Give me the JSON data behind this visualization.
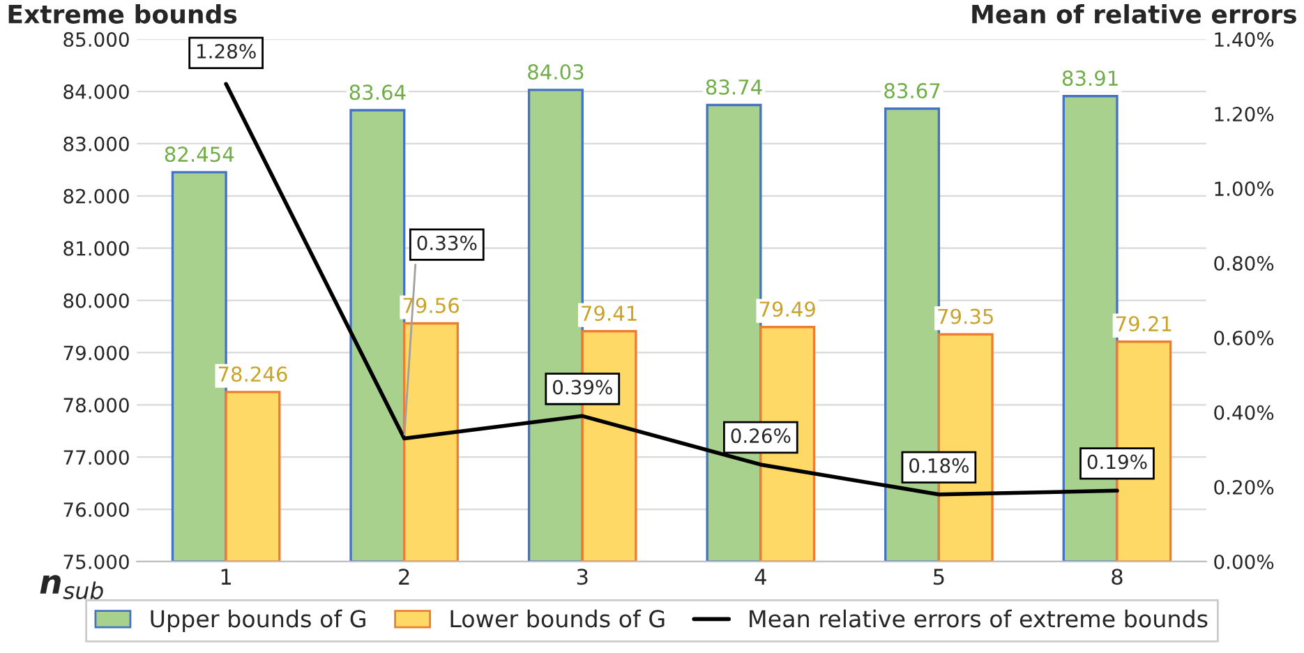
{
  "chart_data": {
    "type": "bar",
    "ylabel": "Extreme bounds",
    "y2label": "Mean of relative errors",
    "xlabel": "n$_{sub}$",
    "categories": [
      "1",
      "2",
      "3",
      "4",
      "5",
      "8"
    ],
    "series": [
      {
        "name": "Upper bounds of G",
        "color": "#a9d18e",
        "values": [
          82.454,
          83.64,
          84.03,
          83.74,
          83.67,
          83.91
        ]
      },
      {
        "name": "Lower bounds of G",
        "color": "#ffd966",
        "values": [
          78.246,
          79.56,
          79.41,
          79.49,
          79.35,
          79.21
        ]
      },
      {
        "name": "Mean relative errors of extreme bounds",
        "type": "line",
        "axis": "y2",
        "color": "#000000",
        "values": [
          1.28,
          0.33,
          0.39,
          0.26,
          0.18,
          0.19
        ],
        "value_labels": [
          "1.28%",
          "0.33%",
          "0.39%",
          "0.26%",
          "0.18%",
          "0.19%"
        ]
      }
    ],
    "data_labels": true,
    "ylim": [
      75,
      85
    ],
    "yticks": [
      {
        "value": 75,
        "label": "75.000"
      },
      {
        "value": 76,
        "label": "76.000"
      },
      {
        "value": 77,
        "label": "77.000"
      },
      {
        "value": 78,
        "label": "78.000"
      },
      {
        "value": 79,
        "label": "79.000"
      },
      {
        "value": 80,
        "label": "80.000"
      },
      {
        "value": 81,
        "label": "81.000"
      },
      {
        "value": 82,
        "label": "82.000"
      },
      {
        "value": 83,
        "label": "83.000"
      },
      {
        "value": 84,
        "label": "84.000"
      },
      {
        "value": 85,
        "label": "85.000"
      }
    ],
    "y2lim": [
      0,
      1.4
    ],
    "y2ticks": [
      {
        "value": 0,
        "label": "0.00%"
      },
      {
        "value": 0.2,
        "label": "0.20%"
      },
      {
        "value": 0.4,
        "label": "0.40%"
      },
      {
        "value": 0.6,
        "label": "0.60%"
      },
      {
        "value": 0.8,
        "label": "0.80%"
      },
      {
        "value": 1.0,
        "label": "1.00%"
      },
      {
        "value": 1.2,
        "label": "1.20%"
      },
      {
        "value": 1.4,
        "label": "1.40%"
      }
    ],
    "grid": "y",
    "legend": "bottom"
  }
}
